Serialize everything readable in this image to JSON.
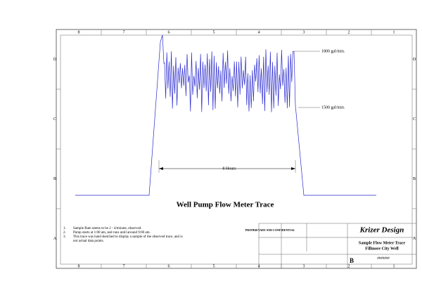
{
  "border": {
    "columns": [
      "8",
      "7",
      "6",
      "5",
      "4",
      "3",
      "2",
      "1"
    ],
    "rows": [
      "D",
      "C",
      "B",
      "A"
    ]
  },
  "trace": {
    "title": "Well Pump Flow Meter Trace",
    "high_label": "1800 gal/min.",
    "low_label": "1500 gal/min.",
    "duration_label": "8 Hours"
  },
  "notes": [
    {
      "number": "1.",
      "text": "Sample Rate seems to be 2 - 4/minute, observed."
    },
    {
      "number": "2.",
      "text": "Pump starts at 1:00 am, and runs until around 9:00 am."
    },
    {
      "number": "3.",
      "text": "This trace was hand sketched to display a sample of the observed trace, and is not actual data points."
    }
  ],
  "title_block": {
    "confidential": "PROPRIETARY AND CONFIDENTIAL",
    "company": "Krizer Design",
    "drawing_title": "Sample Flow Meter Trace",
    "project": "Fillmore City Well",
    "size": "B",
    "dwg_no": "#######"
  }
}
